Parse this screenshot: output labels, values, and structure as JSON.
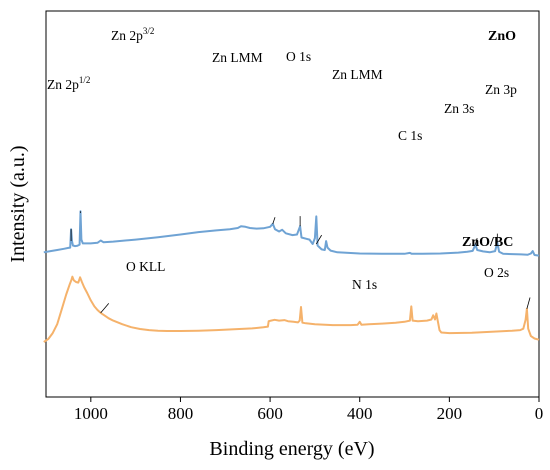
{
  "chart_data": {
    "type": "line",
    "xlabel": "Binding energy (eV)",
    "ylabel": "Intensity (a.u.)",
    "xlim": [
      1100,
      0
    ],
    "x_reversed": true,
    "xticks": [
      1000,
      800,
      600,
      400,
      200,
      0
    ],
    "yticks_shown": false,
    "grid": false,
    "series": [
      {
        "name": "ZnO",
        "color": "#6fa3d4",
        "offset": 3.0,
        "points": [
          [
            1105,
            0.12
          ],
          [
            1090,
            0.16
          ],
          [
            1075,
            0.2
          ],
          [
            1060,
            0.24
          ],
          [
            1050,
            0.27
          ],
          [
            1046,
            0.28
          ],
          [
            1044,
            0.9
          ],
          [
            1042,
            0.5
          ],
          [
            1040,
            0.35
          ],
          [
            1035,
            0.33
          ],
          [
            1030,
            0.34
          ],
          [
            1025,
            0.38
          ],
          [
            1023,
            1.5
          ],
          [
            1021,
            0.55
          ],
          [
            1018,
            0.42
          ],
          [
            1000,
            0.42
          ],
          [
            985,
            0.44
          ],
          [
            978,
            0.52
          ],
          [
            972,
            0.46
          ],
          [
            950,
            0.48
          ],
          [
            900,
            0.55
          ],
          [
            850,
            0.63
          ],
          [
            800,
            0.72
          ],
          [
            760,
            0.8
          ],
          [
            720,
            0.86
          ],
          [
            690,
            0.9
          ],
          [
            672,
            0.94
          ],
          [
            665,
            1.0
          ],
          [
            655,
            0.98
          ],
          [
            645,
            0.94
          ],
          [
            630,
            0.92
          ],
          [
            615,
            0.93
          ],
          [
            600,
            0.98
          ],
          [
            594,
            1.08
          ],
          [
            589,
            0.9
          ],
          [
            580,
            0.82
          ],
          [
            573,
            0.88
          ],
          [
            565,
            0.76
          ],
          [
            550,
            0.7
          ],
          [
            540,
            0.72
          ],
          [
            533,
            1.0
          ],
          [
            530,
            0.62
          ],
          [
            520,
            0.58
          ],
          [
            512,
            0.55
          ],
          [
            505,
            0.4
          ],
          [
            500,
            0.6
          ],
          [
            497,
            1.33
          ],
          [
            494,
            0.35
          ],
          [
            485,
            0.22
          ],
          [
            478,
            0.2
          ],
          [
            475,
            0.5
          ],
          [
            472,
            0.28
          ],
          [
            465,
            0.18
          ],
          [
            450,
            0.12
          ],
          [
            400,
            0.08
          ],
          [
            350,
            0.07
          ],
          [
            300,
            0.07
          ],
          [
            288,
            0.1
          ],
          [
            284,
            0.07
          ],
          [
            260,
            0.07
          ],
          [
            220,
            0.08
          ],
          [
            180,
            0.11
          ],
          [
            160,
            0.14
          ],
          [
            148,
            0.17
          ],
          [
            142,
            0.38
          ],
          [
            138,
            0.2
          ],
          [
            125,
            0.15
          ],
          [
            110,
            0.12
          ],
          [
            98,
            0.16
          ],
          [
            93,
            0.45
          ],
          [
            89,
            0.14
          ],
          [
            80,
            0.07
          ],
          [
            60,
            0.06
          ],
          [
            40,
            0.05
          ],
          [
            25,
            0.04
          ],
          [
            18,
            0.08
          ],
          [
            14,
            0.16
          ],
          [
            10,
            0.03
          ],
          [
            0,
            0.01
          ]
        ]
      },
      {
        "name": "ZnO/BC",
        "color": "#f5b26b",
        "offset": 0.0,
        "points": [
          [
            1105,
            0.1
          ],
          [
            1095,
            0.2
          ],
          [
            1085,
            0.4
          ],
          [
            1075,
            0.7
          ],
          [
            1065,
            1.2
          ],
          [
            1055,
            1.7
          ],
          [
            1047,
            2.05
          ],
          [
            1043,
            2.2
          ],
          [
            1041,
            2.3
          ],
          [
            1038,
            2.18
          ],
          [
            1033,
            2.12
          ],
          [
            1028,
            2.1
          ],
          [
            1024,
            2.28
          ],
          [
            1020,
            2.12
          ],
          [
            1015,
            1.95
          ],
          [
            1008,
            1.75
          ],
          [
            1000,
            1.5
          ],
          [
            992,
            1.3
          ],
          [
            985,
            1.18
          ],
          [
            978,
            1.08
          ],
          [
            970,
            1.0
          ],
          [
            960,
            0.9
          ],
          [
            950,
            0.82
          ],
          [
            930,
            0.7
          ],
          [
            910,
            0.6
          ],
          [
            890,
            0.54
          ],
          [
            870,
            0.5
          ],
          [
            850,
            0.48
          ],
          [
            830,
            0.47
          ],
          [
            800,
            0.47
          ],
          [
            760,
            0.48
          ],
          [
            720,
            0.5
          ],
          [
            680,
            0.53
          ],
          [
            640,
            0.56
          ],
          [
            615,
            0.6
          ],
          [
            605,
            0.62
          ],
          [
            603,
            0.8
          ],
          [
            598,
            0.82
          ],
          [
            590,
            0.85
          ],
          [
            580,
            0.82
          ],
          [
            568,
            0.84
          ],
          [
            560,
            0.8
          ],
          [
            548,
            0.78
          ],
          [
            538,
            0.76
          ],
          [
            534,
            0.82
          ],
          [
            531,
            1.28
          ],
          [
            528,
            0.75
          ],
          [
            520,
            0.73
          ],
          [
            500,
            0.7
          ],
          [
            460,
            0.67
          ],
          [
            420,
            0.67
          ],
          [
            405,
            0.68
          ],
          [
            400,
            0.78
          ],
          [
            396,
            0.68
          ],
          [
            380,
            0.7
          ],
          [
            350,
            0.72
          ],
          [
            320,
            0.75
          ],
          [
            300,
            0.78
          ],
          [
            288,
            0.82
          ],
          [
            285,
            1.3
          ],
          [
            282,
            0.82
          ],
          [
            270,
            0.8
          ],
          [
            250,
            0.82
          ],
          [
            240,
            0.86
          ],
          [
            236,
            1.0
          ],
          [
            232,
            0.86
          ],
          [
            229,
            1.06
          ],
          [
            226,
            0.82
          ],
          [
            222,
            0.5
          ],
          [
            218,
            0.42
          ],
          [
            200,
            0.4
          ],
          [
            150,
            0.41
          ],
          [
            100,
            0.45
          ],
          [
            60,
            0.48
          ],
          [
            42,
            0.5
          ],
          [
            35,
            0.55
          ],
          [
            30,
            0.85
          ],
          [
            27,
            1.22
          ],
          [
            24,
            0.55
          ],
          [
            18,
            0.3
          ],
          [
            10,
            0.22
          ],
          [
            5,
            0.2
          ],
          [
            0,
            0.18
          ]
        ]
      }
    ],
    "annotations": {
      "series_labels": [
        "ZnO",
        "ZnO/BC"
      ],
      "peaks": [
        {
          "text": "Zn 2p",
          "sup": "1/2"
        },
        {
          "text": "Zn 2p",
          "sup": "3/2"
        },
        {
          "text": "Zn LMM",
          "sup": ""
        },
        {
          "text": "O 1s",
          "sup": ""
        },
        {
          "text": "Zn LMM",
          "sup": ""
        },
        {
          "text": "C 1s",
          "sup": ""
        },
        {
          "text": "Zn 3s",
          "sup": ""
        },
        {
          "text": "Zn 3p",
          "sup": ""
        },
        {
          "text": "O KLL",
          "sup": ""
        },
        {
          "text": "N 1s",
          "sup": ""
        },
        {
          "text": "O 2s",
          "sup": ""
        }
      ]
    }
  }
}
